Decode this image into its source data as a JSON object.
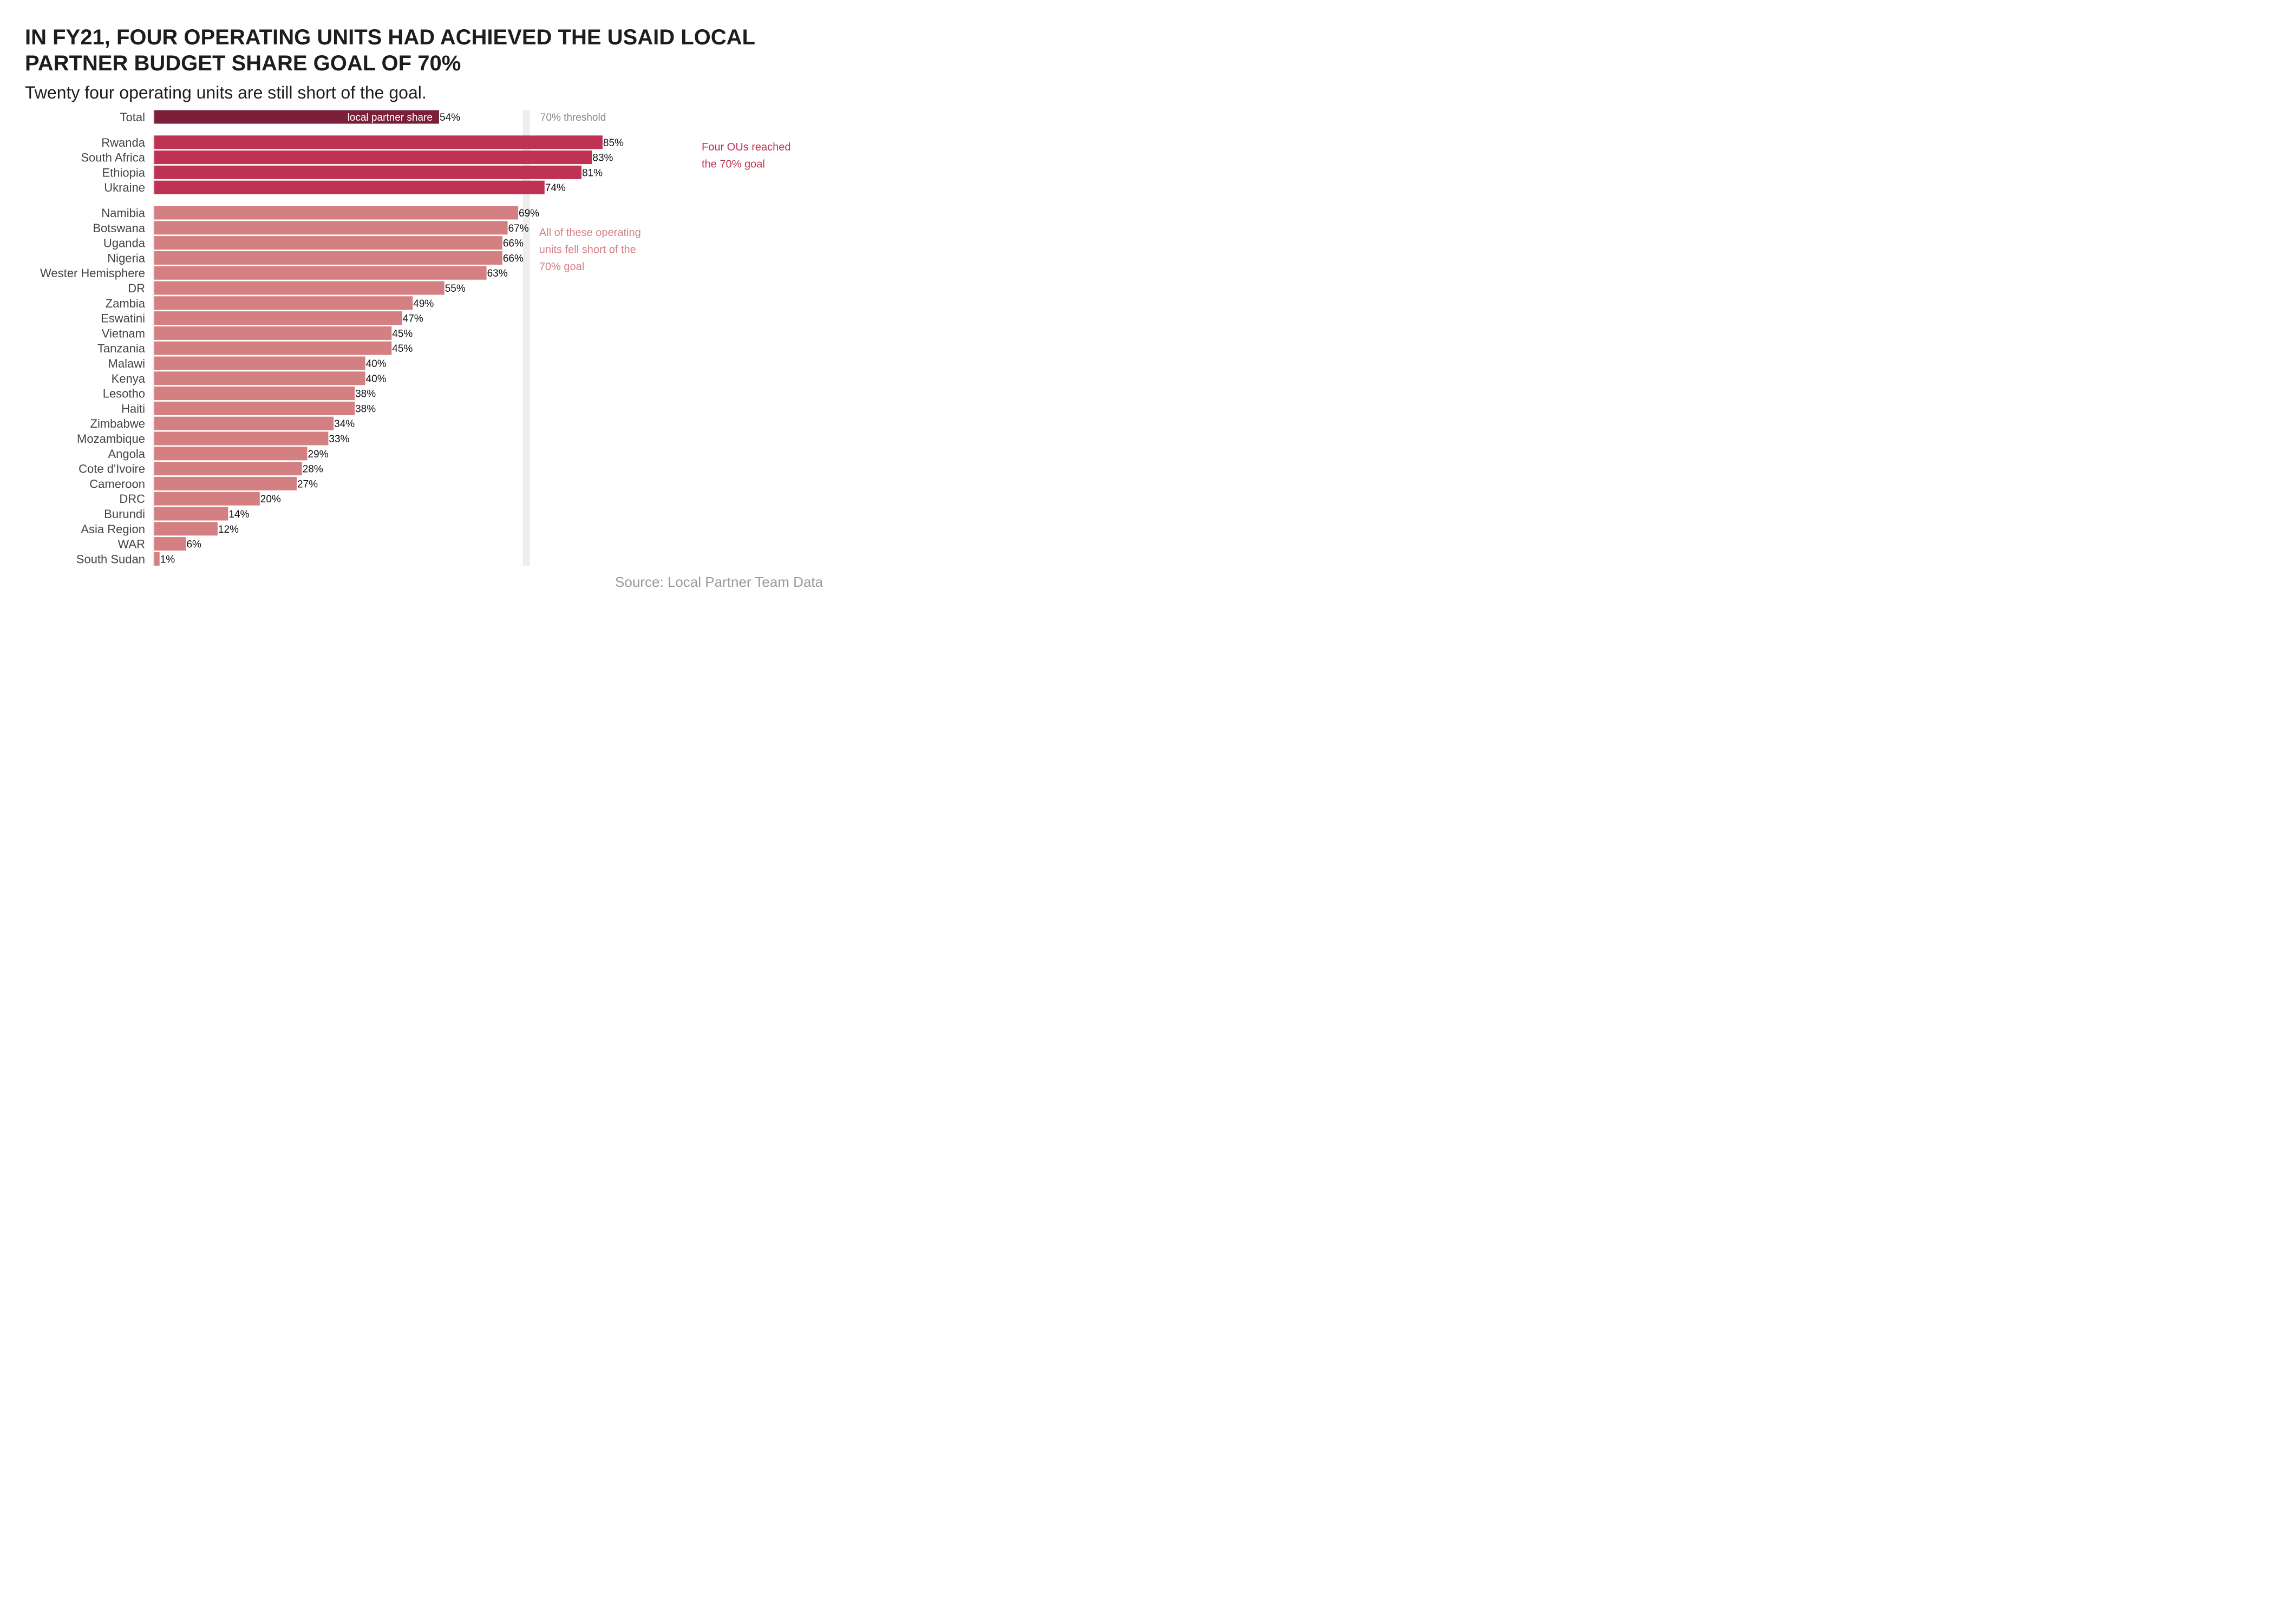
{
  "chart_data": {
    "type": "bar",
    "orientation": "horizontal",
    "title_lines": [
      "IN FY21, FOUR OPERATING UNITS HAD ACHIEVED THE USAID LOCAL",
      "PARTNER BUDGET SHARE GOAL OF 70%"
    ],
    "subtitle": "Twenty four operating units are still short of the goal.",
    "source": "Source: Local Partner Team Data",
    "xlim": [
      0,
      100
    ],
    "threshold": {
      "value": 70,
      "label": "70% threshold",
      "color": "#eeeeee"
    },
    "bar_inline_label": "local partner share",
    "colors": {
      "total": "#7b2038",
      "reached": "#c03253",
      "short": "#d48083"
    },
    "groups": [
      {
        "key": "total",
        "categories": [
          "Total"
        ],
        "values": [
          54
        ],
        "value_labels": [
          "54%"
        ]
      },
      {
        "key": "reached",
        "categories": [
          "Rwanda",
          "South Africa",
          "Ethiopia",
          "Ukraine"
        ],
        "values": [
          85,
          83,
          81,
          74
        ],
        "value_labels": [
          "85%",
          "83%",
          "81%",
          "74%"
        ]
      },
      {
        "key": "short",
        "categories": [
          "Namibia",
          "Botswana",
          "Uganda",
          "Nigeria",
          "Wester Hemisphere",
          "DR",
          "Zambia",
          "Eswatini",
          "Vietnam",
          "Tanzania",
          "Malawi",
          "Kenya",
          "Lesotho",
          "Haiti",
          "Zimbabwe",
          "Mozambique",
          "Angola",
          "Cote d'Ivoire",
          "Cameroon",
          "DRC",
          "Burundi",
          "Asia Region",
          "WAR",
          "South Sudan"
        ],
        "values": [
          69,
          67,
          66,
          66,
          63,
          55,
          49,
          47,
          45,
          45,
          40,
          40,
          38,
          38,
          34,
          33,
          29,
          28,
          27,
          20,
          14,
          12,
          6,
          1
        ],
        "value_labels": [
          "69%",
          "67%",
          "66%",
          "66%",
          "63%",
          "55%",
          "49%",
          "47%",
          "45%",
          "45%",
          "40%",
          "40%",
          "38%",
          "38%",
          "34%",
          "33%",
          "29%",
          "28%",
          "27%",
          "20%",
          "14%",
          "12%",
          "6%",
          "1%"
        ]
      }
    ],
    "annotations": [
      {
        "key": "reached",
        "lines": [
          "Four OUs reached",
          "the 70% goal"
        ],
        "color": "#c03253"
      },
      {
        "key": "short",
        "lines": [
          "All of these operating",
          "units fell short of the",
          "70% goal"
        ],
        "color": "#d48083"
      }
    ]
  }
}
